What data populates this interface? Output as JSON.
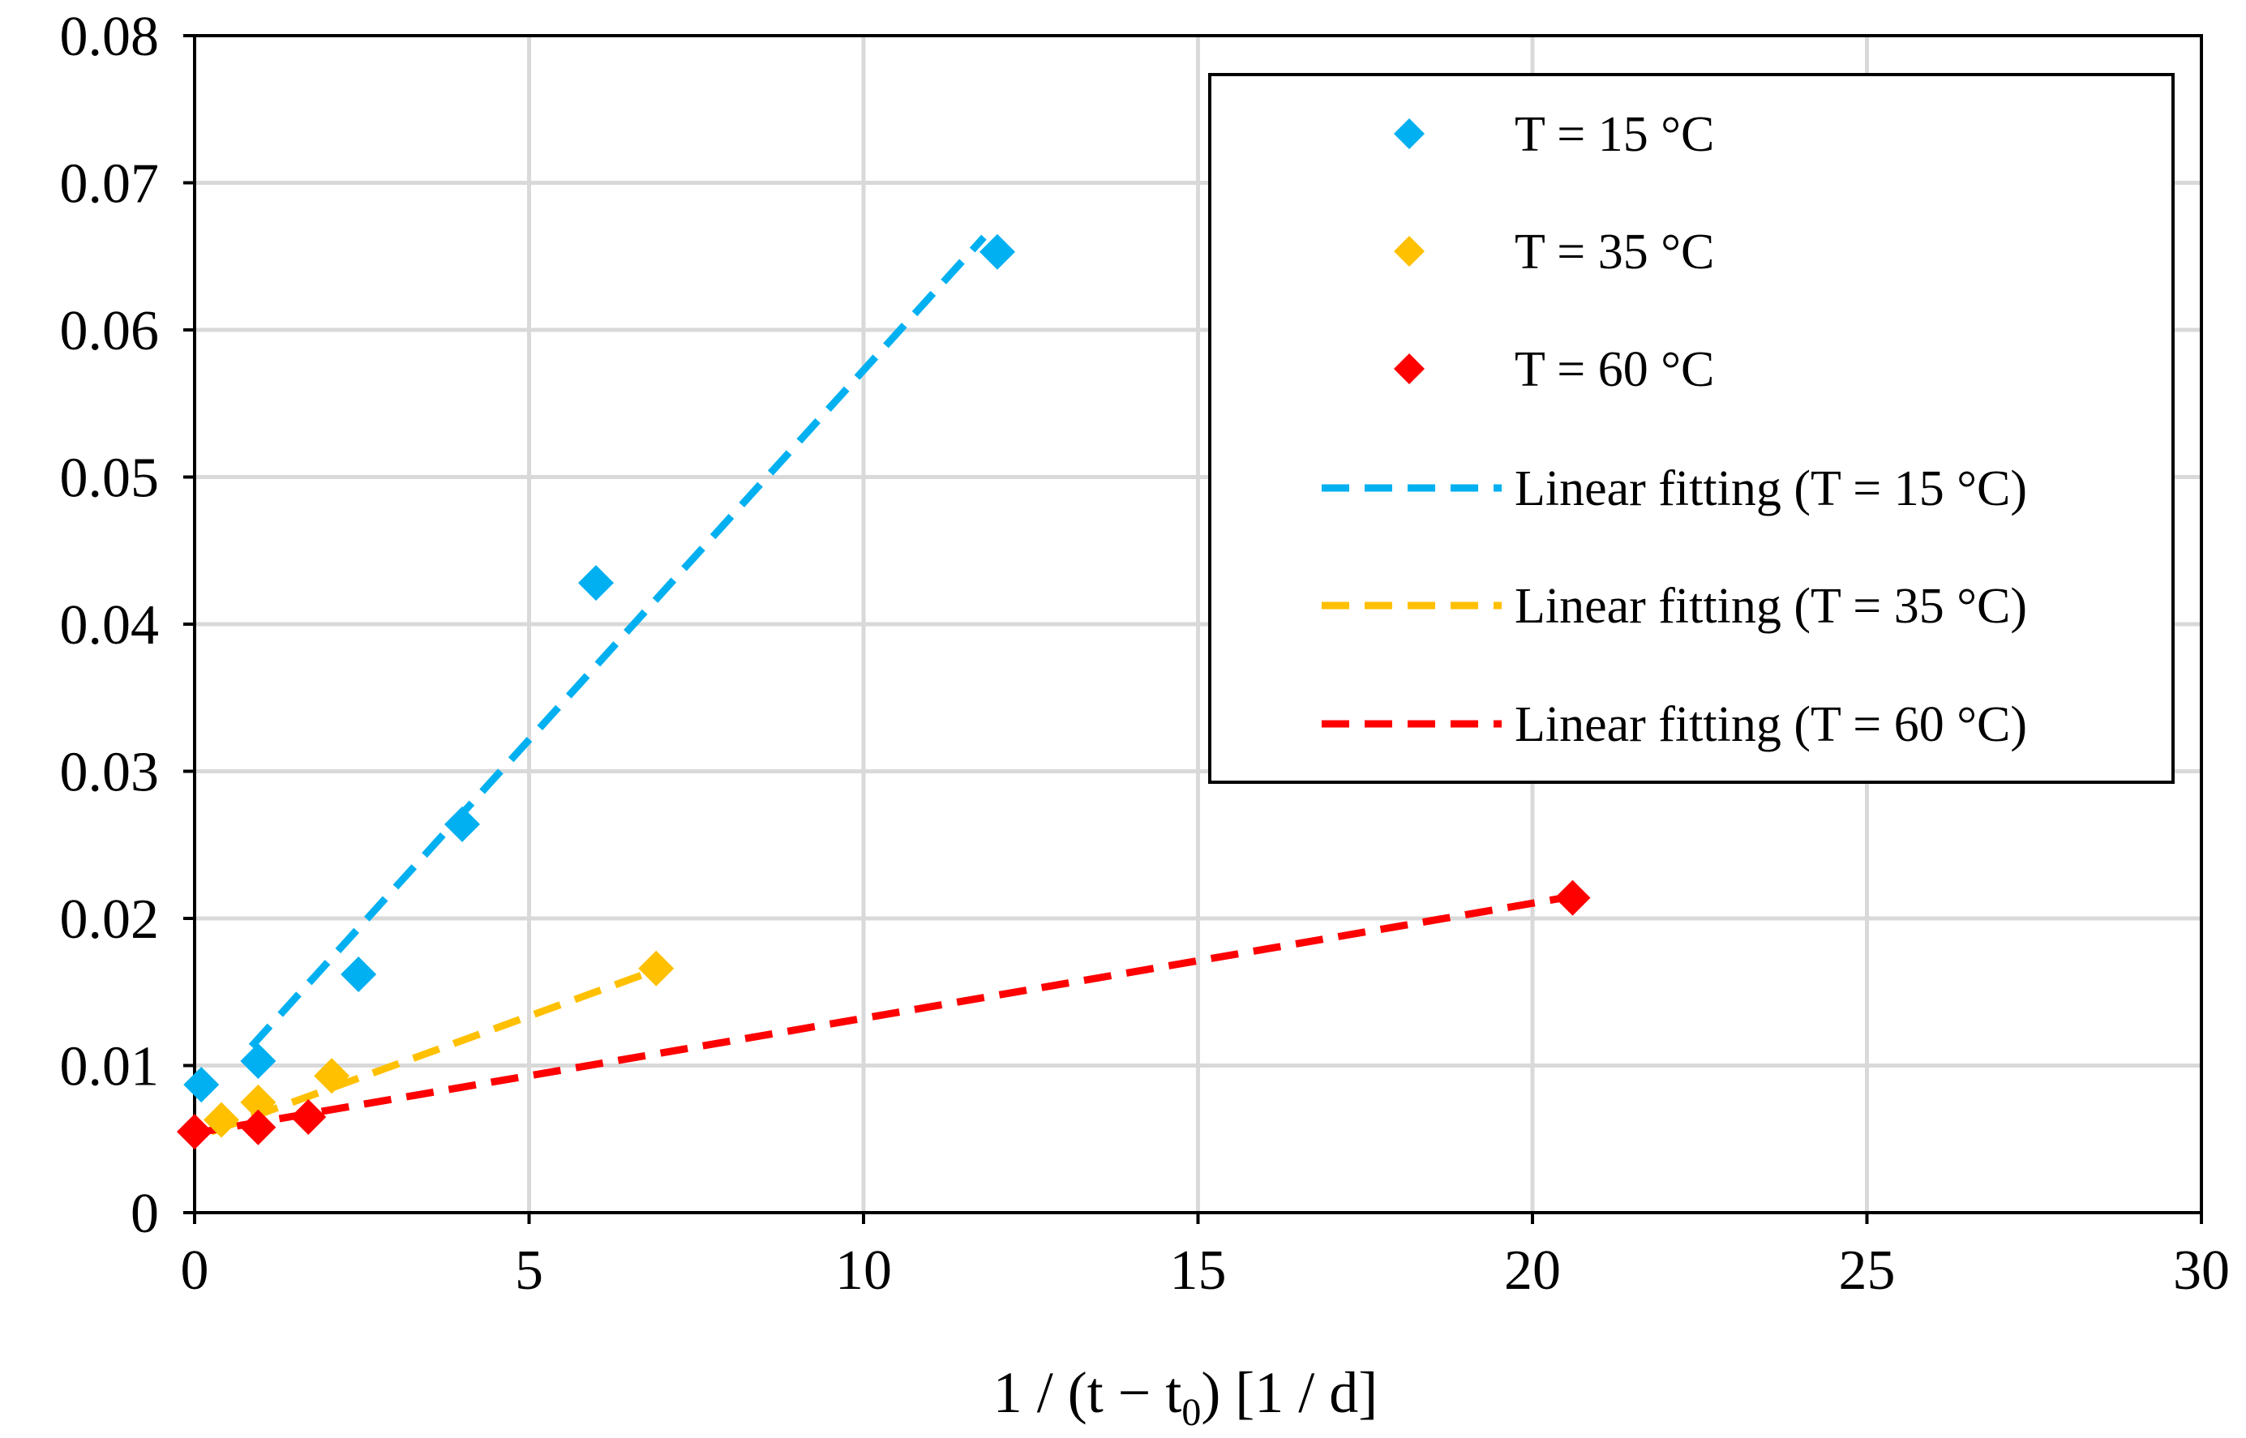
{
  "chart_data": {
    "type": "scatter",
    "title": "",
    "xlabel": "1 /  (t − t",
    "xlabel_sub": "0",
    "xlabel_suffix": ") [1 / d]",
    "ylabel": "",
    "xlim": [
      0,
      30
    ],
    "ylim": [
      0,
      0.08
    ],
    "xticks": [
      "0",
      "5",
      "10",
      "15",
      "20",
      "25",
      "30"
    ],
    "yticks": [
      "0",
      "0.01",
      "0.02",
      "0.03",
      "0.04",
      "0.05",
      "0.06",
      "0.07",
      "0.08"
    ],
    "grid": true,
    "legend_position": "top-right",
    "series": [
      {
        "name": "T = 15 °C",
        "kind": "markers",
        "marker": "diamond",
        "color": "#00b0f0",
        "points": [
          [
            0.1,
            0.0087
          ],
          [
            0.95,
            0.0103
          ],
          [
            2.45,
            0.0162
          ],
          [
            4.0,
            0.0264
          ],
          [
            6.0,
            0.0428
          ],
          [
            12.0,
            0.0653
          ]
        ]
      },
      {
        "name": "T = 35 °C",
        "kind": "markers",
        "marker": "diamond",
        "color": "#ffc000",
        "points": [
          [
            0.4,
            0.0063
          ],
          [
            0.95,
            0.0075
          ],
          [
            2.05,
            0.0093
          ],
          [
            6.9,
            0.0166
          ]
        ]
      },
      {
        "name": "T = 60 °C",
        "kind": "markers",
        "marker": "diamond",
        "color": "#ff0000",
        "points": [
          [
            0.0,
            0.0055
          ],
          [
            0.95,
            0.0058
          ],
          [
            1.7,
            0.0065
          ],
          [
            20.6,
            0.0214
          ]
        ]
      },
      {
        "name": "Linear fitting (T = 15 °C)",
        "kind": "line",
        "dash": true,
        "color": "#00b0f0",
        "points": [
          [
            0.85,
            0.0113
          ],
          [
            11.8,
            0.0663
          ]
        ]
      },
      {
        "name": "Linear fitting (T = 35 °C)",
        "kind": "line",
        "dash": true,
        "color": "#ffc000",
        "points": [
          [
            0.25,
            0.0055
          ],
          [
            6.9,
            0.0165
          ]
        ]
      },
      {
        "name": "Linear fitting (T = 60 °C)",
        "kind": "line",
        "dash": true,
        "color": "#ff0000",
        "points": [
          [
            0.0,
            0.0054
          ],
          [
            20.6,
            0.0215
          ]
        ]
      }
    ]
  }
}
